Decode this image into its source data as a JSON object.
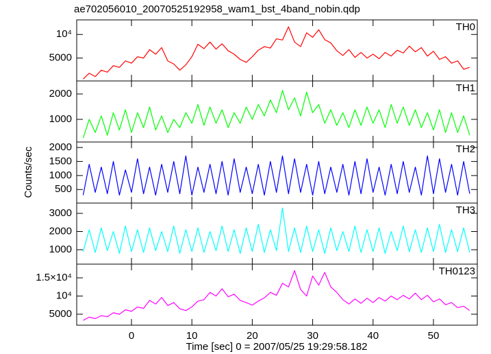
{
  "figure": {
    "title": "ae702056010_20070525192958_wam1_bst_4band_nobin.qdp",
    "ylabel": "Counts/sec",
    "xlabel": "Time [sec] 0 = 2007/05/25 19:29:58.182"
  },
  "chart_data": [
    {
      "type": "line",
      "ylog": true,
      "x": [
        -8,
        -7,
        -6,
        -5,
        -4,
        -3,
        -2,
        -1,
        0,
        1,
        2,
        3,
        4,
        5,
        6,
        7,
        8,
        9,
        10,
        11,
        12,
        13,
        14,
        15,
        16,
        17,
        18,
        19,
        20,
        21,
        22,
        23,
        24,
        25,
        26,
        27,
        28,
        29,
        30,
        31,
        32,
        33,
        34,
        35,
        36,
        37,
        38,
        39,
        40,
        41,
        42,
        43,
        44,
        45,
        46,
        47,
        48,
        49,
        50,
        51,
        52,
        53,
        54,
        55,
        56
      ],
      "series": [
        {
          "name": "TH0",
          "color": "#ff0000",
          "values": [
            2700,
            3200,
            2900,
            3500,
            3300,
            4000,
            3800,
            4600,
            4300,
            5200,
            5000,
            6400,
            5600,
            6800,
            4600,
            4200,
            3500,
            4100,
            5200,
            7500,
            6600,
            8000,
            6500,
            7600,
            6200,
            5600,
            4800,
            4400,
            5200,
            6300,
            7000,
            6700,
            8800,
            8500,
            12500,
            8000,
            7000,
            10500,
            9200,
            11500,
            8600,
            7800,
            6200,
            5400,
            6400,
            5100,
            5900,
            5000,
            5600,
            4900,
            5900,
            5300,
            6300,
            5800,
            7100,
            6000,
            6800,
            5300,
            6100,
            4800,
            5200,
            4300,
            4600,
            3600,
            3800
          ]
        }
      ],
      "xlim": [
        -9.07,
        57.26
      ],
      "xticks": [
        0,
        10,
        20,
        30,
        40,
        50
      ],
      "ylim": [
        2550,
        15350
      ],
      "yticks": [
        5000,
        {
          "value": 10000,
          "label": "10⁴"
        }
      ]
    },
    {
      "type": "line",
      "ylog": true,
      "x": [
        -8,
        -7,
        -6,
        -5,
        -4,
        -3,
        -2,
        -1,
        0,
        1,
        2,
        3,
        4,
        5,
        6,
        7,
        8,
        9,
        10,
        11,
        12,
        13,
        14,
        15,
        16,
        17,
        18,
        19,
        20,
        21,
        22,
        23,
        24,
        25,
        26,
        27,
        28,
        29,
        30,
        31,
        32,
        33,
        34,
        35,
        36,
        37,
        38,
        39,
        40,
        41,
        42,
        43,
        44,
        45,
        46,
        47,
        48,
        49,
        50,
        51,
        52,
        53,
        54,
        55,
        56
      ],
      "series": [
        {
          "name": "TH1",
          "color": "#00ff00",
          "values": [
            600,
            1000,
            700,
            1100,
            650,
            1200,
            750,
            1300,
            700,
            1200,
            800,
            1400,
            750,
            1100,
            700,
            1000,
            800,
            1200,
            900,
            1500,
            850,
            1400,
            900,
            1300,
            800,
            1200,
            900,
            1400,
            1000,
            1500,
            1100,
            1700,
            1200,
            2200,
            1300,
            1800,
            1100,
            2100,
            1200,
            1500,
            900,
            1300,
            850,
            1200,
            800,
            1300,
            850,
            1400,
            900,
            1300,
            800,
            1500,
            900,
            1400,
            850,
            1300,
            800,
            1200,
            750,
            1300,
            700,
            1200,
            700,
            1100,
            650
          ]
        }
      ],
      "xlim": [
        -9.07,
        57.26
      ],
      "xticks": [
        0,
        10,
        20,
        30,
        40,
        50
      ],
      "ylim": [
        540,
        2850
      ],
      "yticks": [
        1000,
        2000
      ]
    },
    {
      "type": "line",
      "ylog": false,
      "x": [
        -8,
        -7,
        -6,
        -5,
        -4,
        -3,
        -2,
        -1,
        0,
        1,
        2,
        3,
        4,
        5,
        6,
        7,
        8,
        9,
        10,
        11,
        12,
        13,
        14,
        15,
        16,
        17,
        18,
        19,
        20,
        21,
        22,
        23,
        24,
        25,
        26,
        27,
        28,
        29,
        30,
        31,
        32,
        33,
        34,
        35,
        36,
        37,
        38,
        39,
        40,
        41,
        42,
        43,
        44,
        45,
        46,
        47,
        48,
        49,
        50,
        51,
        52,
        53,
        54,
        55,
        56
      ],
      "series": [
        {
          "name": "TH2",
          "color": "#0000ff",
          "values": [
            300,
            1400,
            400,
            1300,
            350,
            1500,
            300,
            1200,
            400,
            1600,
            350,
            1300,
            300,
            1400,
            400,
            1500,
            350,
            1700,
            300,
            1300,
            400,
            1400,
            350,
            1500,
            300,
            1600,
            400,
            1300,
            350,
            1400,
            300,
            1500,
            400,
            1700,
            350,
            1600,
            400,
            1400,
            300,
            1500,
            350,
            1300,
            400,
            1400,
            300,
            1500,
            350,
            1600,
            400,
            1300,
            300,
            1400,
            350,
            1500,
            400,
            1300,
            300,
            1700,
            350,
            1600,
            400,
            1400,
            300,
            1500,
            350
          ]
        }
      ],
      "xlim": [
        -9.07,
        57.26
      ],
      "xticks": [
        0,
        10,
        20,
        30,
        40,
        50
      ],
      "ylim": [
        17,
        2195
      ],
      "yticks": [
        500,
        1000,
        1500,
        2000
      ]
    },
    {
      "type": "line",
      "ylog": false,
      "x": [
        -8,
        -7,
        -6,
        -5,
        -4,
        -3,
        -2,
        -1,
        0,
        1,
        2,
        3,
        4,
        5,
        6,
        7,
        8,
        9,
        10,
        11,
        12,
        13,
        14,
        15,
        16,
        17,
        18,
        19,
        20,
        21,
        22,
        23,
        24,
        25,
        26,
        27,
        28,
        29,
        30,
        31,
        32,
        33,
        34,
        35,
        36,
        37,
        38,
        39,
        40,
        41,
        42,
        43,
        44,
        45,
        46,
        47,
        48,
        49,
        50,
        51,
        52,
        53,
        54,
        55,
        56
      ],
      "series": [
        {
          "name": "TH3",
          "color": "#00ffff",
          "values": [
            900,
            2100,
            850,
            2200,
            950,
            2000,
            800,
            2300,
            900,
            2100,
            850,
            2200,
            950,
            2000,
            900,
            2300,
            800,
            2100,
            900,
            2200,
            850,
            2000,
            950,
            2300,
            900,
            2100,
            800,
            2200,
            900,
            2400,
            850,
            2100,
            950,
            3300,
            900,
            2200,
            850,
            2300,
            900,
            2100,
            800,
            2200,
            950,
            2000,
            900,
            2300,
            850,
            2100,
            900,
            2200,
            800,
            2000,
            950,
            2300,
            900,
            2100,
            850,
            2200,
            900,
            2400,
            850,
            2100,
            900,
            2200,
            850
          ]
        }
      ],
      "xlim": [
        -9.07,
        57.26
      ],
      "xticks": [
        0,
        10,
        20,
        30,
        40,
        50
      ],
      "ylim": [
        208,
        3566
      ],
      "yticks": [
        1000,
        2000,
        3000
      ]
    },
    {
      "type": "line",
      "ylog": false,
      "x": [
        -8,
        -7,
        -6,
        -5,
        -4,
        -3,
        -2,
        -1,
        0,
        1,
        2,
        3,
        4,
        5,
        6,
        7,
        8,
        9,
        10,
        11,
        12,
        13,
        14,
        15,
        16,
        17,
        18,
        19,
        20,
        21,
        22,
        23,
        24,
        25,
        26,
        27,
        28,
        29,
        30,
        31,
        32,
        33,
        34,
        35,
        36,
        37,
        38,
        39,
        40,
        41,
        42,
        43,
        44,
        45,
        46,
        47,
        48,
        49,
        50,
        51,
        52,
        53,
        54,
        55,
        56
      ],
      "series": [
        {
          "name": "TH0123",
          "color": "#ff00ff",
          "values": [
            3300,
            4200,
            3800,
            4600,
            4300,
            5400,
            5000,
            6200,
            5800,
            7000,
            6600,
            8800,
            7800,
            9600,
            7400,
            8200,
            6500,
            6000,
            7000,
            8600,
            9000,
            11000,
            10000,
            12000,
            9800,
            10500,
            8800,
            8200,
            7500,
            8600,
            9500,
            11000,
            10200,
            13500,
            12500,
            17000,
            11800,
            10000,
            15500,
            13000,
            16500,
            12500,
            11000,
            9000,
            7800,
            9200,
            8000,
            9400,
            8200,
            9600,
            8600,
            10000,
            9000,
            10200,
            9200,
            10800,
            9000,
            10200,
            8400,
            9200,
            7600,
            8200,
            6800,
            7200,
            6000
          ]
        }
      ],
      "xlim": [
        -9.07,
        57.26
      ],
      "xticks": [
        0,
        10,
        20,
        30,
        40,
        50
      ],
      "ylim": [
        1981,
        18774
      ],
      "yticks": [
        5000,
        {
          "value": 10000,
          "label": "10⁴"
        },
        {
          "value": 15000,
          "label": "1.5×10⁴"
        }
      ]
    }
  ]
}
